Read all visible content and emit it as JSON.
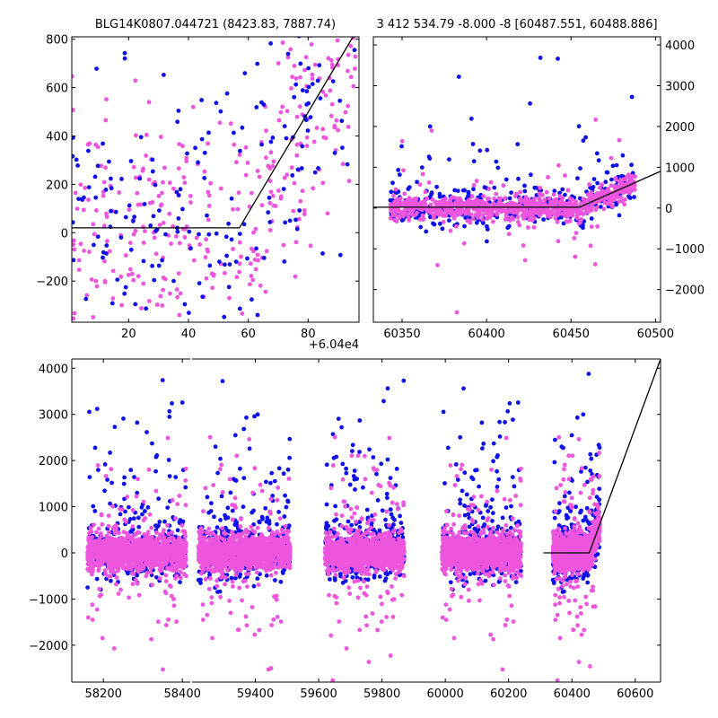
{
  "chart_data": {
    "type": "scatter",
    "colors": {
      "series_a": "#1010e8",
      "series_b": "#ee55dd",
      "model_line": "#000000"
    },
    "panels": [
      {
        "id": "zoom",
        "title": "BLG14K0807.044721 (8423.83, 7887.74)",
        "x_offset_label": "+6.04e4",
        "xlim": [
          1,
          97
        ],
        "ylim": [
          -370,
          810
        ],
        "x_ticks": [
          20,
          40,
          60,
          80
        ],
        "x_tick_labels": [
          "20",
          "40",
          "60",
          "80"
        ],
        "y_ticks": [
          -200,
          0,
          200,
          400,
          600,
          800
        ],
        "y_tick_labels": [
          "−200",
          "0",
          "200",
          "400",
          "600",
          "800"
        ],
        "y_axis_side": "left",
        "model_line": {
          "x": [
            1,
            57,
            95
          ],
          "y": [
            20,
            20,
            810
          ]
        }
      },
      {
        "id": "season",
        "title": "3 412 534.79 -8.000 -8 [60487.551, 60488.886]",
        "xlim": [
          60333,
          60503
        ],
        "ylim": [
          -2800,
          4200
        ],
        "x_ticks": [
          60350,
          60400,
          60450,
          60500
        ],
        "x_tick_labels": [
          "60350",
          "60400",
          "60450",
          "60500"
        ],
        "y_ticks": [
          -2000,
          -1000,
          0,
          1000,
          2000,
          3000,
          4000
        ],
        "y_tick_labels": [
          "−2000",
          "−1000",
          "0",
          "1000",
          "2000",
          "3000",
          "4000"
        ],
        "y_axis_side": "right",
        "model_line": {
          "x": [
            60333,
            60455,
            60503
          ],
          "y": [
            20,
            20,
            900
          ]
        }
      },
      {
        "id": "full",
        "title": "",
        "xlim": [
          58120,
          60680
        ],
        "ylim": [
          -2800,
          4200
        ],
        "x_ticks": [
          58200,
          58400,
          59400,
          59600,
          59800,
          60000,
          60200,
          60400,
          60600
        ],
        "x_tick_labels": [
          "58200",
          "58400",
          "59400",
          "59600",
          "59800",
          "60000",
          "60200",
          "60400",
          "60600"
        ],
        "y_ticks": [
          -2000,
          -1000,
          0,
          1000,
          2000,
          3000,
          4000
        ],
        "y_tick_labels": [
          "−2000",
          "−1000",
          "0",
          "1000",
          "2000",
          "3000",
          "4000"
        ],
        "y_axis_side": "left",
        "axis_break_between": [
          58420,
          59200
        ],
        "model_line": {
          "x": [
            60310,
            60455,
            60680
          ],
          "y": [
            0,
            0,
            4200
          ]
        },
        "seasons": [
          {
            "x_start": 58160,
            "x_end": 58410,
            "peak_x": 58300
          },
          {
            "x_start": 59220,
            "x_end": 59510,
            "peak_x": 59360
          },
          {
            "x_start": 59620,
            "x_end": 59870,
            "peak_x": 59760
          },
          {
            "x_start": 59990,
            "x_end": 60240,
            "peak_x": 60110
          },
          {
            "x_start": 60340,
            "x_end": 60488,
            "peak_x": 60430
          }
        ]
      }
    ]
  }
}
